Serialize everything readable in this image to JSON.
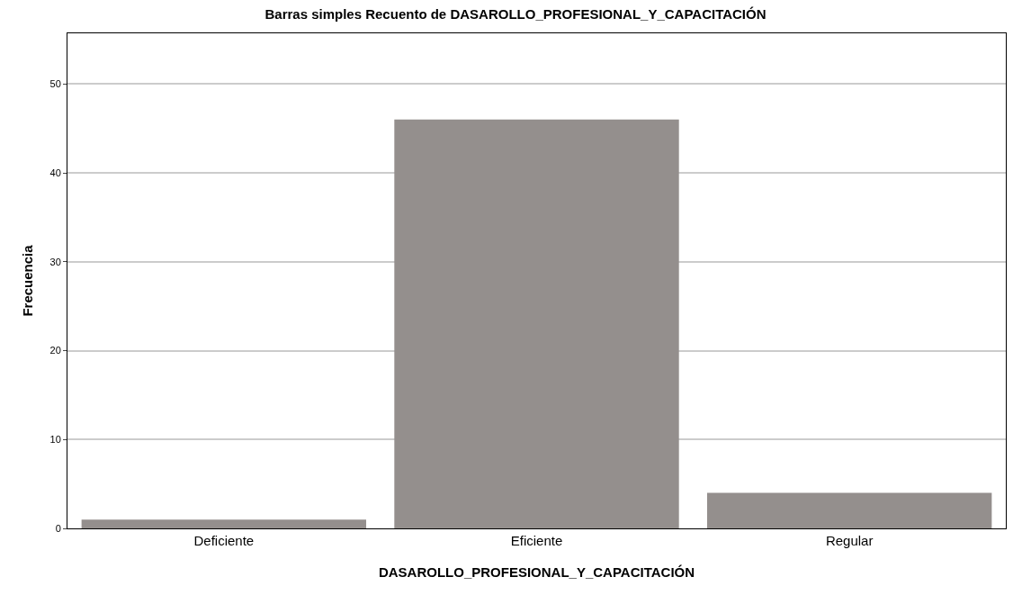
{
  "chart_data": {
    "type": "bar",
    "title": "Barras simples Recuento de DASAROLLO_PROFESIONAL_Y_CAPACITACIÓN",
    "xlabel": "DASAROLLO_PROFESIONAL_Y_CAPACITACIÓN",
    "ylabel": "Frecuencia",
    "categories": [
      "Deficiente",
      "Eficiente",
      "Regular"
    ],
    "values": [
      1,
      46,
      4
    ],
    "color": "#948f8d",
    "ylim": [
      0,
      55.7
    ],
    "yticks": [
      0,
      10,
      20,
      30,
      40,
      50
    ],
    "grid": "y"
  }
}
